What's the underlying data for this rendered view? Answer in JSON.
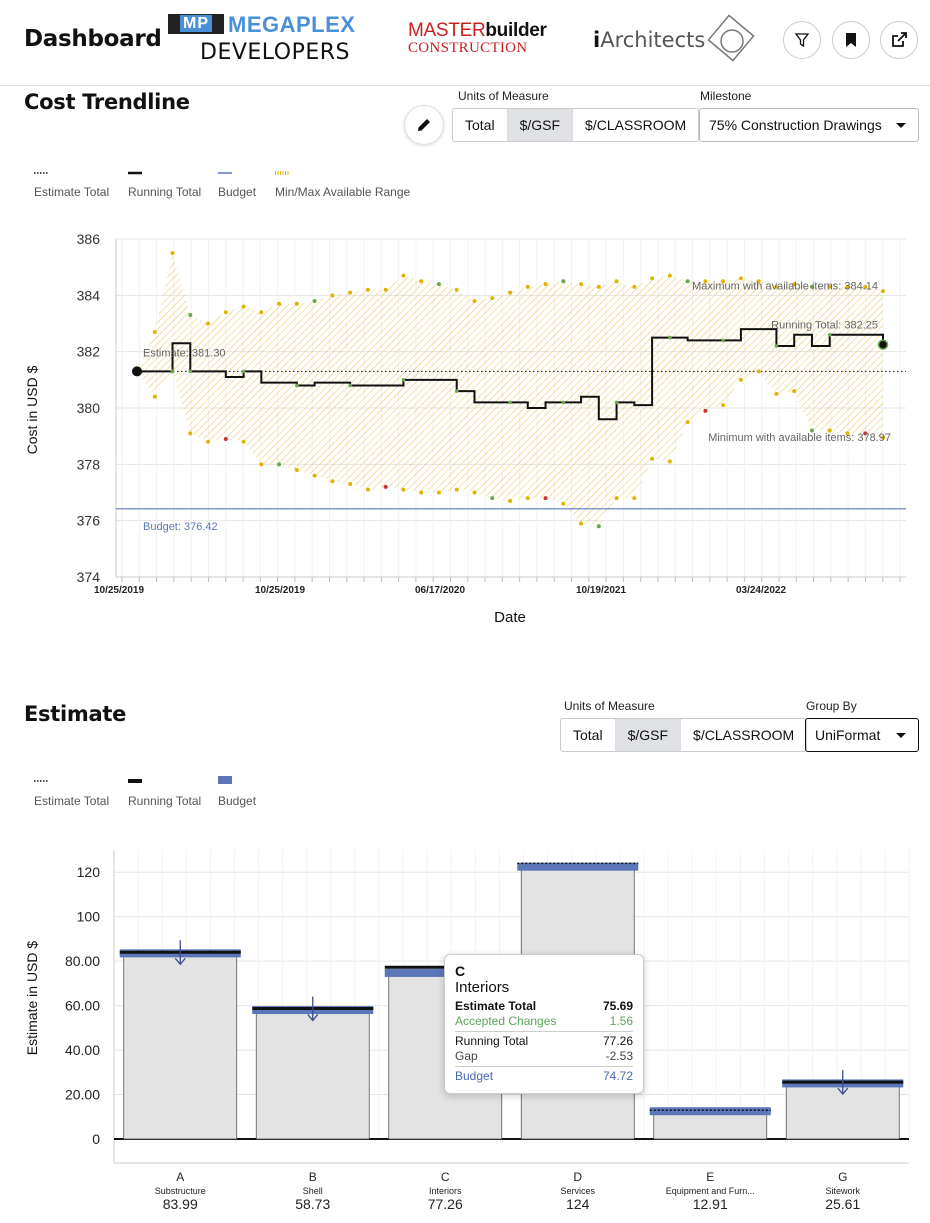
{
  "header": {
    "title": "Dashboard",
    "logos": {
      "megaplex": {
        "mark": "MP",
        "name": "MEGAPLEX",
        "sub": "DEVELOPERS"
      },
      "masterbuilder": {
        "part1": "MASTER",
        "part2": "builder",
        "sub": "CONSTRUCTION"
      },
      "iarchitects": {
        "prefix": "i",
        "name": "Architects"
      }
    },
    "buttons": {
      "filter": "filter-icon",
      "bookmark": "bookmark-icon",
      "share": "share-icon"
    }
  },
  "cost_trendline": {
    "title": "Cost Trendline",
    "units_label": "Units of Measure",
    "units_options": [
      "Total",
      "$/GSF",
      "$/CLASSROOM"
    ],
    "units_selected": "$/GSF",
    "milestone_label": "Milestone",
    "milestone_value": "75% Construction Drawings",
    "legend": [
      "Estimate Total",
      "Running Total",
      "Budget",
      "Min/Max Available Range"
    ],
    "chart": {
      "ylabel": "Cost in USD $",
      "xlabel": "Date",
      "yticks": [
        "386",
        "384",
        "382",
        "380",
        "378",
        "376",
        "374"
      ],
      "xticks": [
        "10/25/2019",
        "10/25/2019",
        "06/17/2020",
        "10/19/2021",
        "03/24/2022"
      ],
      "annotations": {
        "maximum": "Maximum with available items: 384.14",
        "running_total": "Running Total: 382.25",
        "estimate": "Estimate: 381.30",
        "minimum": "Minimum with available items: 378.97",
        "budget": "Budget: 376.42"
      }
    }
  },
  "estimate": {
    "title": "Estimate",
    "units_label": "Units of Measure",
    "units_options": [
      "Total",
      "$/GSF",
      "$/CLASSROOM"
    ],
    "units_selected": "$/GSF",
    "group_label": "Group By",
    "group_value": "UniFormat",
    "legend": [
      "Estimate Total",
      "Running Total",
      "Budget"
    ],
    "chart": {
      "ylabel": "Estimate in USD $",
      "yticks": [
        "120",
        "100",
        "80.00",
        "60.00",
        "40.00",
        "20.00",
        "0"
      ],
      "categories": [
        {
          "code": "A",
          "name": "Substructure",
          "value": "83.99"
        },
        {
          "code": "B",
          "name": "Shell",
          "value": "58.73"
        },
        {
          "code": "C",
          "name": "Interiors",
          "value": "77.26"
        },
        {
          "code": "D",
          "name": "Services",
          "value": "124"
        },
        {
          "code": "E",
          "name": "Equipment and Furn...",
          "value": "12.91"
        },
        {
          "code": "G",
          "name": "Sitework",
          "value": "25.61"
        }
      ]
    },
    "tooltip": {
      "code": "C",
      "name": "Interiors",
      "estimate_total_label": "Estimate Total",
      "estimate_total": "75.69",
      "accepted_changes_label": "Accepted Changes",
      "accepted_changes": "1.56",
      "running_total_label": "Running Total",
      "running_total": "77.26",
      "gap_label": "Gap",
      "gap": "-2.53",
      "budget_label": "Budget",
      "budget": "74.72"
    }
  },
  "chart_data": [
    {
      "type": "line",
      "title": "Cost Trendline",
      "xlabel": "Date",
      "ylabel": "Cost in USD $",
      "ylim": [
        374,
        386
      ],
      "series": [
        {
          "name": "Running Total",
          "values": [
            381.3,
            381.3,
            382.3,
            381.3,
            381.3,
            381.1,
            381.3,
            380.9,
            380.9,
            380.8,
            380.9,
            380.9,
            380.8,
            380.8,
            380.8,
            381.0,
            381.0,
            381.0,
            380.6,
            380.2,
            380.2,
            380.2,
            380.0,
            380.2,
            380.2,
            380.4,
            379.6,
            380.2,
            380.1,
            382.5,
            382.5,
            382.4,
            382.4,
            382.4,
            382.8,
            382.8,
            382.2,
            382.6,
            382.2,
            382.6,
            382.6,
            382.6,
            382.25
          ]
        },
        {
          "name": "Budget",
          "values": [
            376.42
          ]
        }
      ],
      "annotations": [
        "Maximum with available items: 384.14",
        "Minimum with available items: 378.97",
        "Estimate: 381.30",
        "Running Total: 382.25",
        "Budget: 376.42"
      ]
    },
    {
      "type": "bar",
      "ylabel": "Estimate in USD $",
      "ylim": [
        0,
        130
      ],
      "categories": [
        "A",
        "B",
        "C",
        "D",
        "E",
        "G"
      ],
      "series": [
        {
          "name": "Running Total",
          "values": [
            83.99,
            58.73,
            77.26,
            124,
            12.91,
            25.61
          ]
        },
        {
          "name": "Budget",
          "values": [
            83.5,
            58.0,
            74.72,
            122.5,
            12.5,
            25.0
          ]
        }
      ]
    }
  ]
}
